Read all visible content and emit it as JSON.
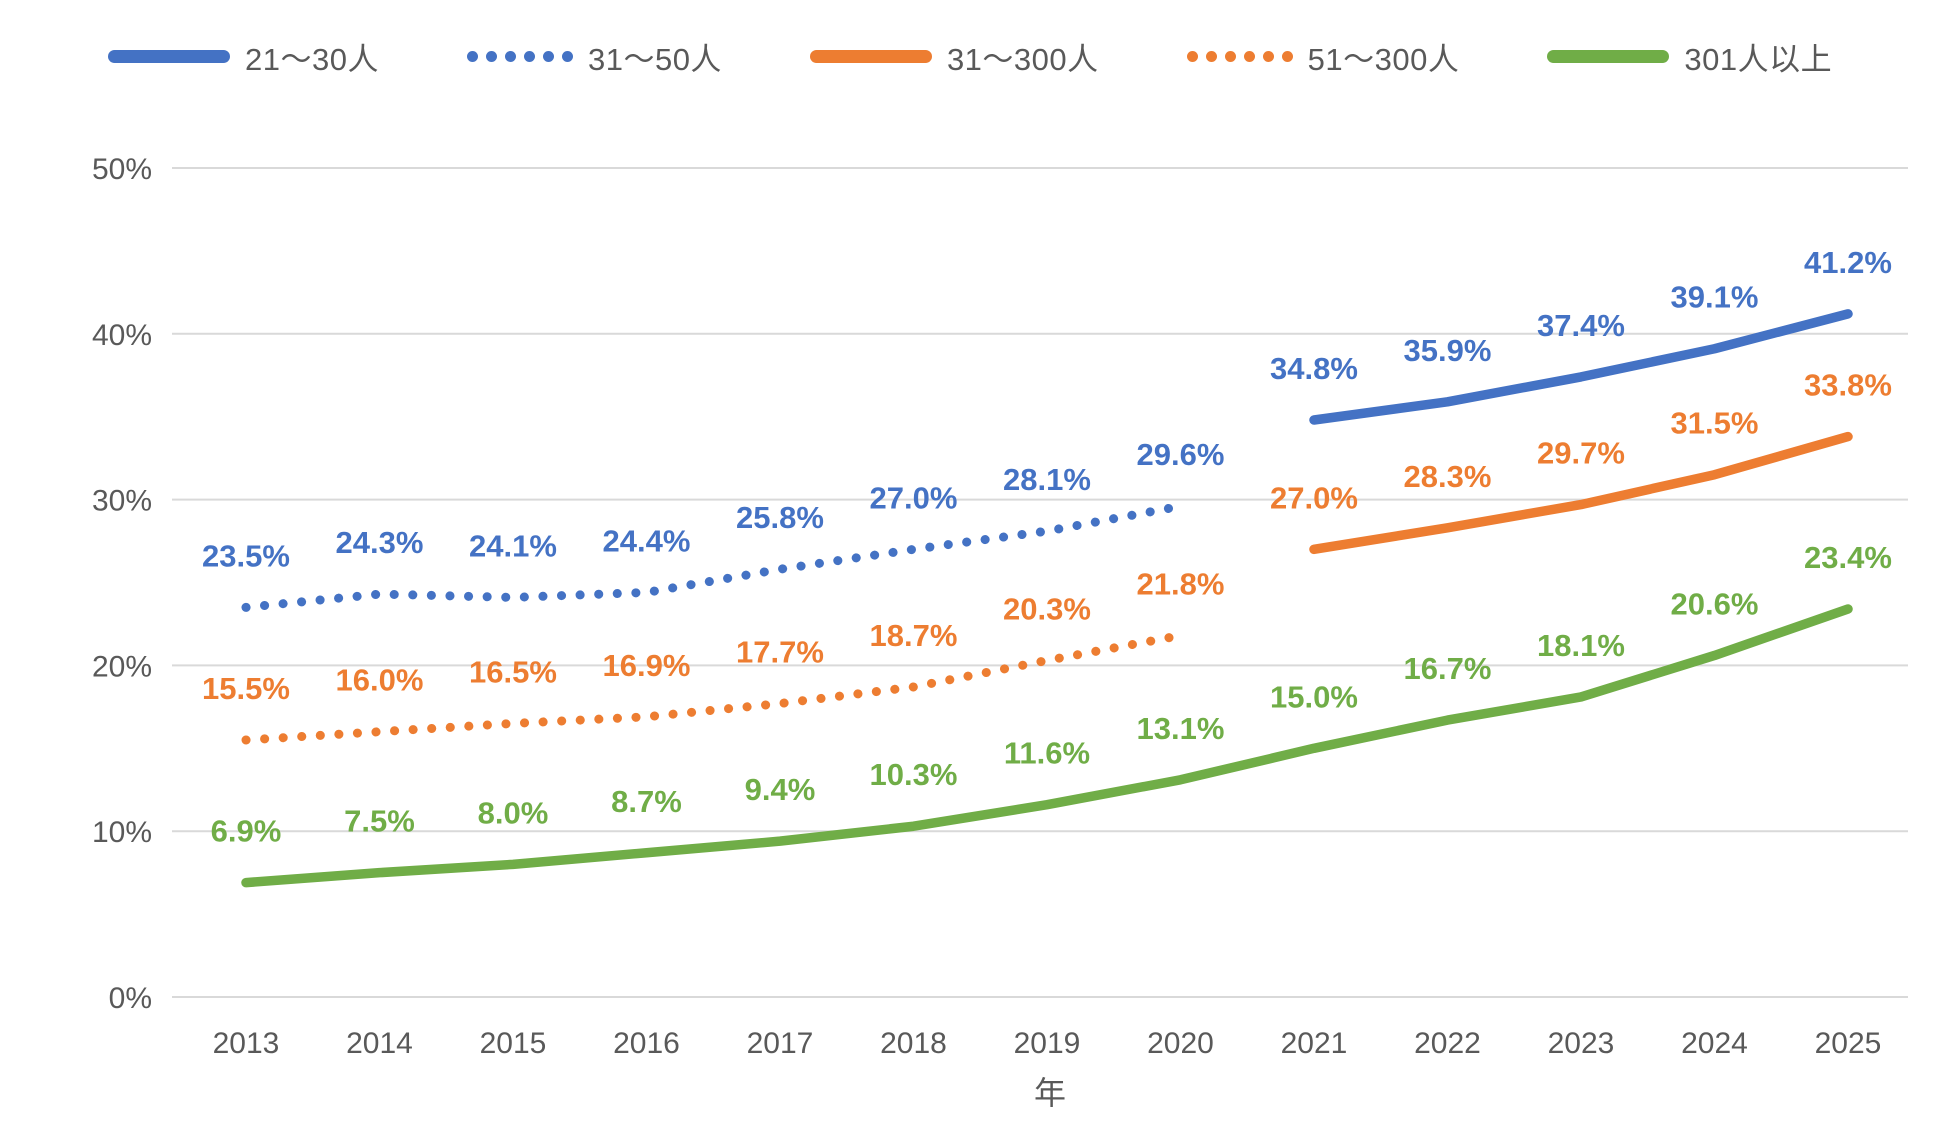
{
  "legend": {
    "position": "top",
    "entries": [
      "21〜30人",
      "31〜50人",
      "31〜300人",
      "51〜300人",
      "301人以上"
    ]
  },
  "chart_data": {
    "type": "line",
    "title": "",
    "xlabel": "年",
    "ylabel": "",
    "x": [
      "2013",
      "2014",
      "2015",
      "2016",
      "2017",
      "2018",
      "2019",
      "2020",
      "2021",
      "2022",
      "2023",
      "2024",
      "2025"
    ],
    "ylim": [
      0,
      50
    ],
    "yticks": [
      "0%",
      "10%",
      "20%",
      "30%",
      "40%",
      "50%"
    ],
    "grid": true,
    "grid_color": "#D9D9D9",
    "axis_text_color": "#595959",
    "legend_position": "top",
    "series": [
      {
        "name": "21〜30人",
        "color": "#4472C4",
        "style": "solid",
        "values": [
          null,
          null,
          null,
          null,
          null,
          null,
          null,
          null,
          34.8,
          35.9,
          37.4,
          39.1,
          41.2
        ]
      },
      {
        "name": "31〜50人",
        "color": "#4472C4",
        "style": "dotted",
        "values": [
          23.5,
          24.3,
          24.1,
          24.4,
          25.8,
          27.0,
          28.1,
          29.6,
          null,
          null,
          null,
          null,
          null
        ]
      },
      {
        "name": "31〜300人",
        "color": "#ED7D31",
        "style": "solid",
        "values": [
          null,
          null,
          null,
          null,
          null,
          null,
          null,
          null,
          27.0,
          28.3,
          29.7,
          31.5,
          33.8
        ]
      },
      {
        "name": "51〜300人",
        "color": "#ED7D31",
        "style": "dotted",
        "values": [
          15.5,
          16.0,
          16.5,
          16.9,
          17.7,
          18.7,
          20.3,
          21.8,
          null,
          null,
          null,
          null,
          null
        ]
      },
      {
        "name": "301人以上",
        "color": "#70AD47",
        "style": "solid",
        "values": [
          6.9,
          7.5,
          8.0,
          8.7,
          9.4,
          10.3,
          11.6,
          13.1,
          15.0,
          16.7,
          18.1,
          20.6,
          23.4
        ]
      }
    ]
  }
}
